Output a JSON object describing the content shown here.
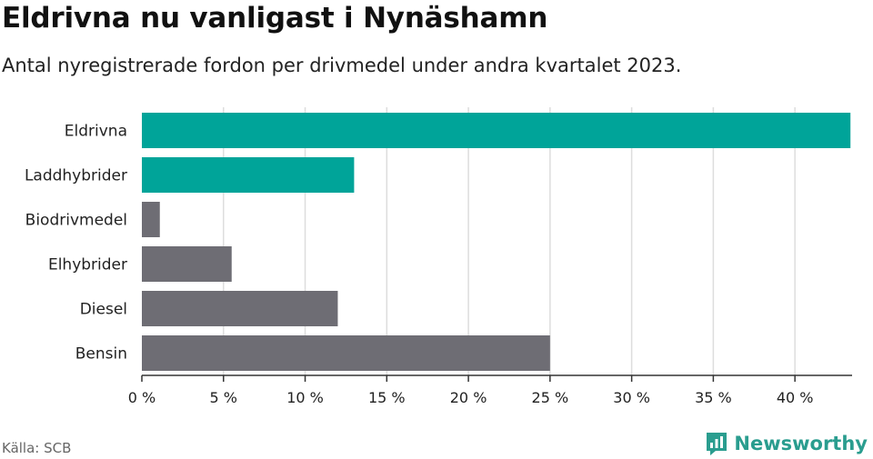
{
  "header": {
    "title": "Eldrivna nu vanligast i Nynäshamn",
    "subtitle": "Antal nyregistrerade fordon per drivmedel under andra kvartalet 2023."
  },
  "footer": {
    "source": "Källa: SCB",
    "brand": "Newsworthy",
    "brand_icon": "newsworthy-logo-icon"
  },
  "colors": {
    "highlight": "#00a499",
    "neutral": "#6e6d74",
    "grid": "#dddddd",
    "axis": "#333333",
    "brand": "#2a9d8f"
  },
  "chart_data": {
    "type": "bar",
    "orientation": "horizontal",
    "title": "Eldrivna nu vanligast i Nynäshamn",
    "subtitle": "Antal nyregistrerade fordon per drivmedel under andra kvartalet 2023.",
    "xlabel": "",
    "ylabel": "",
    "categories": [
      "Eldrivna",
      "Laddhybrider",
      "Biodrivmedel",
      "Elhybrider",
      "Diesel",
      "Bensin"
    ],
    "values": [
      43.4,
      13.0,
      1.1,
      5.5,
      12.0,
      25.0
    ],
    "highlight": [
      true,
      true,
      false,
      false,
      false,
      false
    ],
    "xlim": [
      0,
      43.5
    ],
    "xticks": [
      0,
      5,
      10,
      15,
      20,
      25,
      30,
      35,
      40
    ],
    "xtick_labels": [
      "0 %",
      "5 %",
      "10 %",
      "15 %",
      "20 %",
      "25 %",
      "30 %",
      "35 %",
      "40 %"
    ],
    "grid": true
  }
}
